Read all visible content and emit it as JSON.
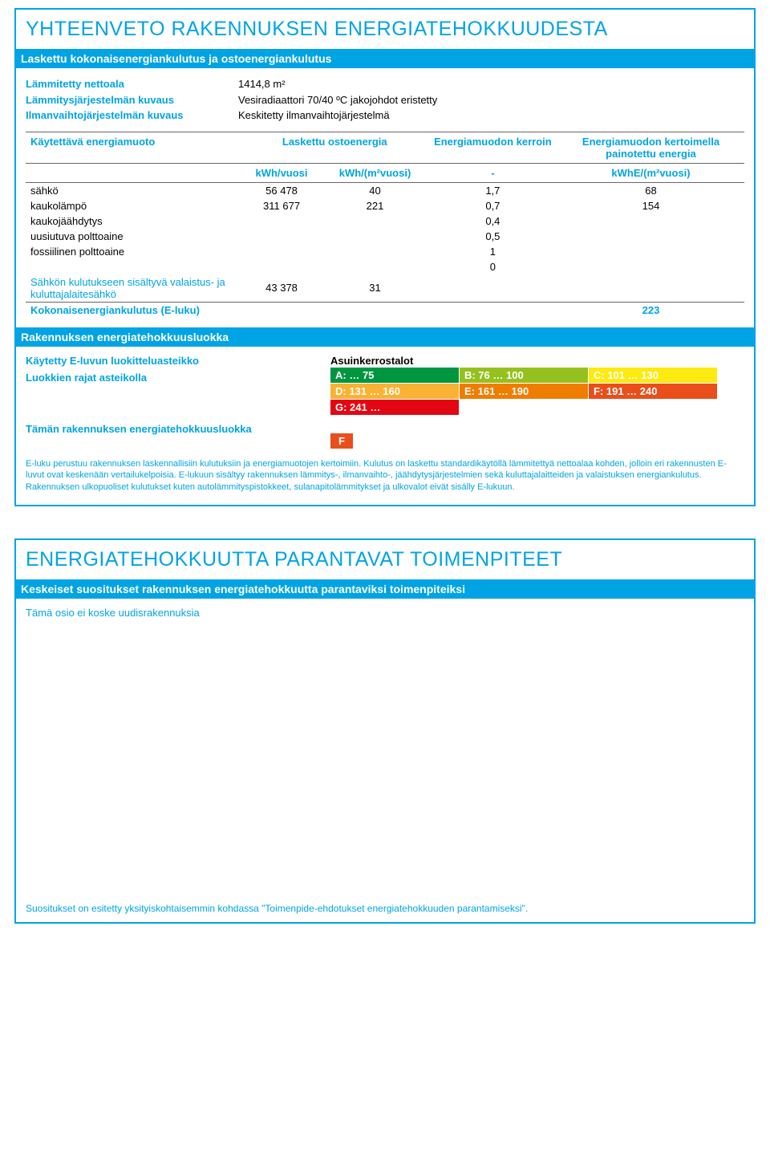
{
  "colors": {
    "brand": "#00a4e4",
    "A": "#009640",
    "B": "#95c11f",
    "C": "#fcea10",
    "D": "#f9b233",
    "E": "#ef7d00",
    "F": "#e94e1b",
    "G": "#e30613"
  },
  "panel1": {
    "title": "YHTEENVETO RAKENNUKSEN ENERGIATEHOKKUUDESTA",
    "band": "Laskettu kokonaisenergiankulutus ja ostoenergiankulutus",
    "kv": {
      "l1_label": "Lämmitetty nettoala",
      "l1_val": "1414,8 m²",
      "l2_label": "Lämmitysjärjestelmän kuvaus",
      "l2_val": "Vesiradiaattori 70/40 ºC jakojohdot eristetty",
      "l3_label": "Ilmanvaihtojärjestelmän kuvaus",
      "l3_val": "Keskitetty ilmanvaihtojärjestelmä"
    },
    "table": {
      "h1": "Käytettävä energiamuoto",
      "h2": "Laskettu ostoenergia",
      "h3": "Energiamuodon kerroin",
      "h4": "Energiamuodon kertoimella painotettu energia",
      "u1": "kWh/vuosi",
      "u2": "kWh/(m²vuosi)",
      "u3": "-",
      "u4": "kWhE/(m²vuosi)",
      "rows": [
        {
          "name": "sähkö",
          "c1": "56 478",
          "c2": "40",
          "c3": "1,7",
          "c4": "68"
        },
        {
          "name": "kaukolämpö",
          "c1": "311 677",
          "c2": "221",
          "c3": "0,7",
          "c4": "154"
        },
        {
          "name": "kaukojäähdytys",
          "c1": "",
          "c2": "",
          "c3": "0,4",
          "c4": ""
        },
        {
          "name": "uusiutuva polttoaine",
          "c1": "",
          "c2": "",
          "c3": "0,5",
          "c4": ""
        },
        {
          "name": "fossiilinen polttoaine",
          "c1": "",
          "c2": "",
          "c3": "1",
          "c4": ""
        },
        {
          "name": "",
          "c1": "",
          "c2": "",
          "c3": "0",
          "c4": ""
        }
      ],
      "sub_label": "Sähkön kulutukseen sisältyvä valaistus- ja kuluttajalaitesähkö",
      "sub_c1": "43 378",
      "sub_c2": "31",
      "total_label": "Kokonaisenergiankulutus (E-luku)",
      "total_val": "223"
    },
    "band2": "Rakennuksen energiatehokkuusluokka",
    "scale_label": "Käytetty E-luvun luokitteluasteikko",
    "scale_value": "Asuinkerrostalot",
    "ranges_label": "Luokkien rajat asteikolla",
    "grid": [
      {
        "txt": "A: … 75",
        "bg": "#009640"
      },
      {
        "txt": "B: 76 … 100",
        "bg": "#95c11f"
      },
      {
        "txt": "C: 101 … 130",
        "bg": "#fcea10"
      },
      {
        "txt": "D: 131 … 160",
        "bg": "#f9b233"
      },
      {
        "txt": "E: 161 … 190",
        "bg": "#ef7d00"
      },
      {
        "txt": "F: 191 … 240",
        "bg": "#e94e1b"
      },
      {
        "txt": "G: 241 …",
        "bg": "#e30613"
      }
    ],
    "class_label": "Tämän rakennuksen energiatehokkuusluokka",
    "class_letter": "F",
    "class_bg": "#e94e1b",
    "note": "E-luku perustuu rakennuksen laskennallisiin kulutuksiin ja energiamuotojen kertoimiin. Kulutus on laskettu standardikäytöllä lämmitettyä nettoalaa kohden, jolloin eri rakennusten E-luvut ovat keskenään vertailukelpoisia. E-lukuun sisältyy rakennuksen lämmitys-, ilmanvaihto-, jäähdytysjärjestelmien sekä kuluttajalaitteiden ja valaistuksen energiankulutus. Rakennuksen ulkopuoliset kulutukset kuten autolämmityspistokkeet, sulanapitolämmitykset ja ulkovalot eivät sisälly E-lukuun."
  },
  "panel2": {
    "title": "ENERGIATEHOKKUUTTA PARANTAVAT TOIMENPITEET",
    "band": "Keskeiset suositukset rakennuksen energiatehokkuutta parantaviksi toimenpiteiksi",
    "body": "Tämä osio ei koske uudisrakennuksia",
    "foot": "Suositukset on esitetty yksityiskohtaisemmin kohdassa \"Toimenpide-ehdotukset energiatehokkuuden parantamiseksi\"."
  }
}
